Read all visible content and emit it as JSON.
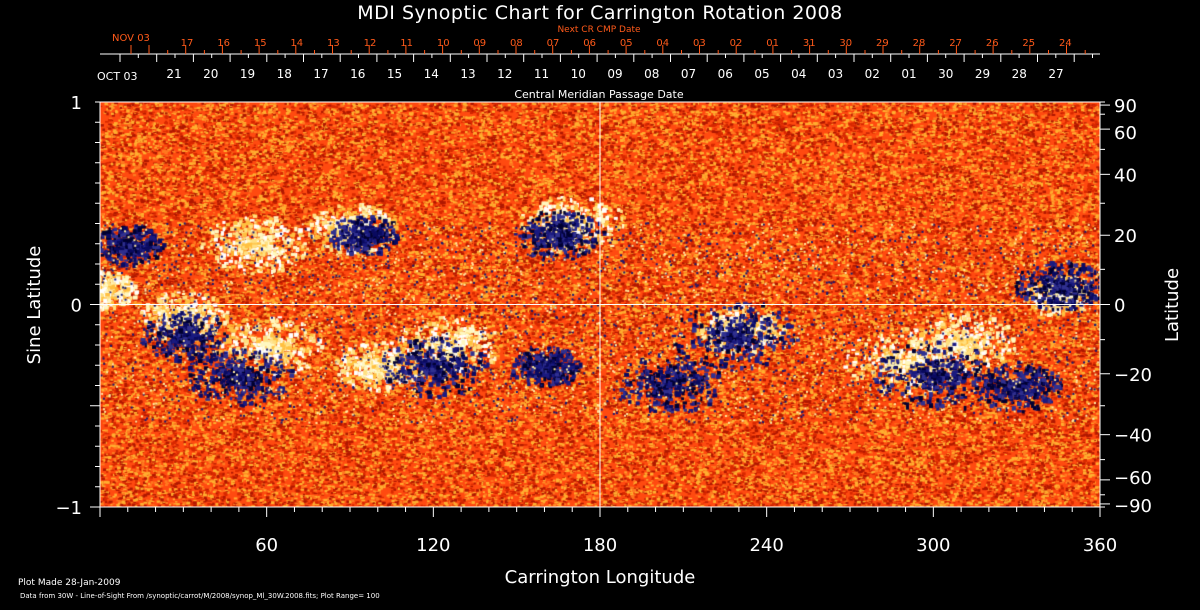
{
  "chart_data": {
    "type": "heatmap",
    "title": "MDI Synoptic Chart for Carrington Rotation 2008",
    "xlabel": "Carrington Longitude",
    "ylabel_left": "Sine Latitude",
    "ylabel_right": "Latitude",
    "xlim": [
      0,
      360
    ],
    "ylim": [
      -1,
      1
    ],
    "x_ticks": [
      "60",
      "120",
      "180",
      "240",
      "300",
      "360"
    ],
    "x_tick_values": [
      60,
      120,
      180,
      240,
      300,
      360
    ],
    "y_left_ticks": [
      "1",
      "0",
      "−1"
    ],
    "y_left_tick_values": [
      1,
      0,
      -1
    ],
    "y_right_ticks": [
      "90",
      "60",
      "40",
      "20",
      "0",
      "−20",
      "−40",
      "−60",
      "−90"
    ],
    "y_right_tick_values": [
      90,
      60,
      40,
      20,
      0,
      -20,
      -40,
      -60,
      -90
    ],
    "top_axis": {
      "label": "Central Meridian Passage Date",
      "start_label": "OCT 03",
      "dates": [
        "21",
        "20",
        "19",
        "18",
        "17",
        "16",
        "15",
        "14",
        "13",
        "12",
        "11",
        "10",
        "09",
        "08",
        "07",
        "06",
        "05",
        "04",
        "03",
        "02",
        "01",
        "30",
        "29",
        "28",
        "27"
      ]
    },
    "next_cr_axis": {
      "label": "Next CR CMP Date",
      "start_label": "NOV 03",
      "dates": [
        "17",
        "16",
        "15",
        "14",
        "13",
        "12",
        "11",
        "10",
        "09",
        "08",
        "07",
        "06",
        "05",
        "04",
        "03",
        "02",
        "01",
        "31",
        "30",
        "29",
        "28",
        "27",
        "26",
        "25",
        "24"
      ]
    },
    "plot_range": 100,
    "colors": {
      "background": "#ff4a10",
      "positive": "#fff8c0",
      "negative": "#0a0a60",
      "axis_orange": "#ff5a1a"
    }
  },
  "footer": {
    "plot_made": "Plot Made 28-Jan-2009",
    "data_source": "Data from 30W - Line-of-Sight From /synoptic/carrot/M/2008/synop_Ml_30W.2008.fits; Plot Range=  100"
  }
}
